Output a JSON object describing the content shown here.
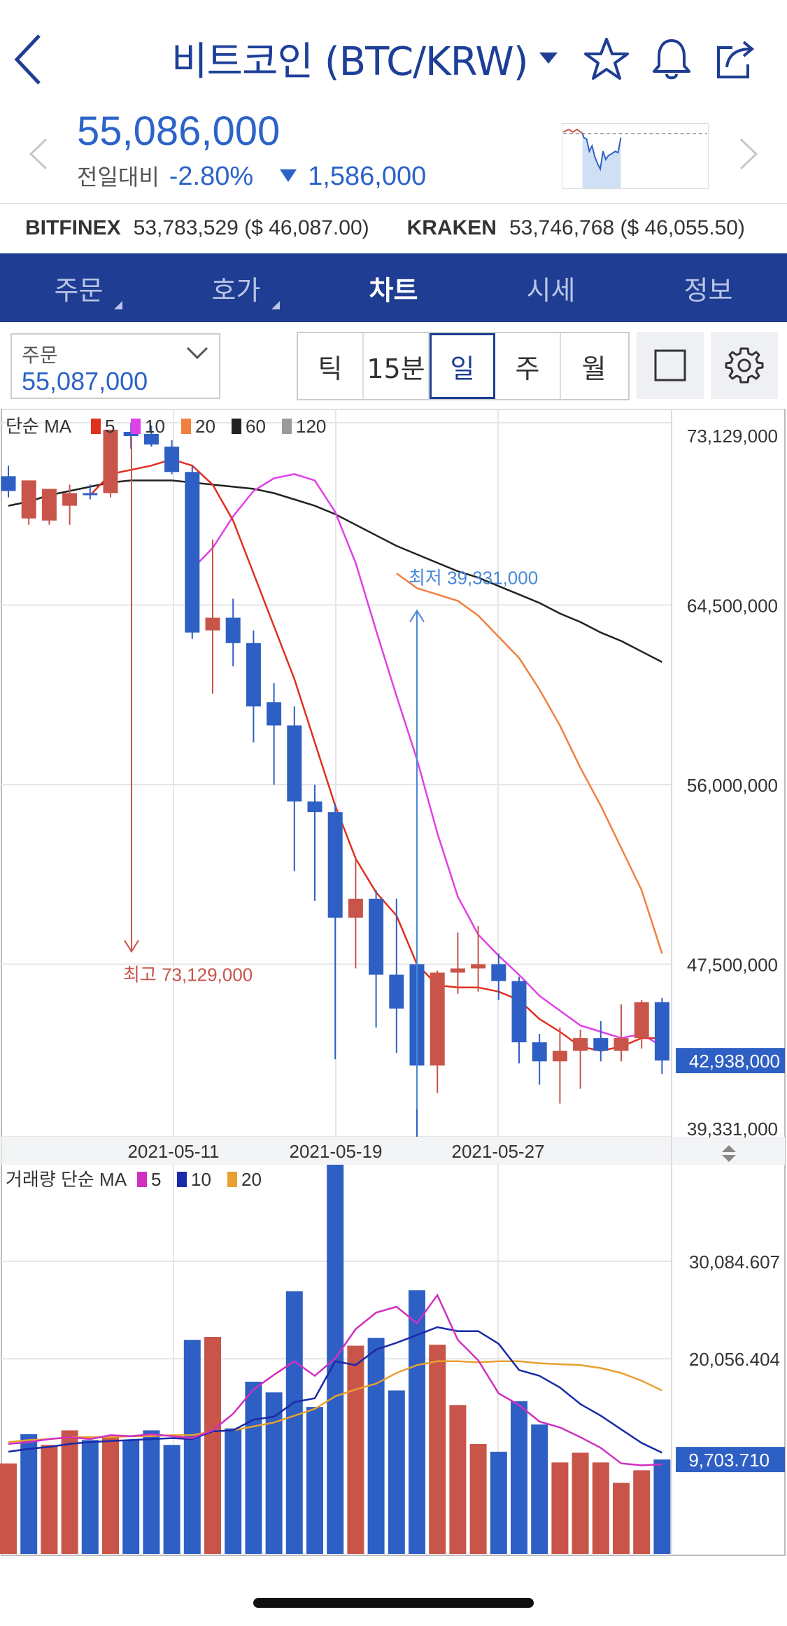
{
  "header": {
    "title": "비트코인 (BTC/KRW)",
    "icons": [
      "back-icon",
      "caret-down-icon",
      "star-icon",
      "bell-icon",
      "share-icon"
    ]
  },
  "price": {
    "current": "55,086,000",
    "change_label": "전일대비",
    "change_pct": "-2.80%",
    "change_amount": "1,586,000"
  },
  "exchanges": [
    {
      "name": "BITFINEX",
      "value": "53,783,529 ($ 46,087.00)"
    },
    {
      "name": "KRAKEN",
      "value": "53,746,768 ($ 46,055.50)"
    }
  ],
  "tabs": [
    {
      "label": "주문",
      "active": false
    },
    {
      "label": "호가",
      "active": false
    },
    {
      "label": "차트",
      "active": true
    },
    {
      "label": "시세",
      "active": false
    },
    {
      "label": "정보",
      "active": false
    }
  ],
  "toolbar": {
    "order_label": "주문",
    "order_value": "55,087,000",
    "periods": [
      "틱",
      "15분",
      "일",
      "주",
      "월"
    ],
    "selected_period": "일"
  },
  "colors": {
    "up": "#c8544a",
    "down": "#2e5fc4",
    "ma5": "#e0301e",
    "ma10": "#e040e8",
    "ma20": "#f08040",
    "ma60": "#222222",
    "ma120": "#9a9a9a",
    "vma5": "#d030c0",
    "vma10": "#1a2aa8",
    "vma20": "#e8a030"
  },
  "chart_data": [
    {
      "type": "candlestick",
      "legend_title": "단순 MA",
      "legend": [
        "5",
        "10",
        "20",
        "60",
        "120"
      ],
      "y_ticks": [
        "73,129,000",
        "64,500,000",
        "56,000,000",
        "47,500,000",
        "39,331,000"
      ],
      "y_tick_values": [
        73129000,
        64500000,
        56000000,
        47500000,
        39331000
      ],
      "ylim": [
        39331000,
        73129000
      ],
      "x_ticks": [
        "2021-05-11",
        "2021-05-19",
        "2021-05-27"
      ],
      "current_price_label": "42,938,000",
      "current_price": 42938000,
      "annotations": {
        "high": {
          "text": "최고 73,129,000",
          "value": 73129000
        },
        "low": {
          "text": "최저 39,331,000",
          "value": 39331000
        }
      },
      "candles": [
        {
          "o": 70600000,
          "h": 71100000,
          "l": 69600000,
          "c": 69900000
        },
        {
          "o": 68600000,
          "h": 70400000,
          "l": 68300000,
          "c": 70400000
        },
        {
          "o": 68500000,
          "h": 70000000,
          "l": 68300000,
          "c": 70000000
        },
        {
          "o": 69200000,
          "h": 70200000,
          "l": 68300000,
          "c": 69800000
        },
        {
          "o": 69800000,
          "h": 70200000,
          "l": 69500000,
          "c": 69700000
        },
        {
          "o": 69800000,
          "h": 72800000,
          "l": 69600000,
          "c": 72800000
        },
        {
          "o": 72700000,
          "h": 73129000,
          "l": 71900000,
          "c": 72500000
        },
        {
          "o": 72600000,
          "h": 73000000,
          "l": 72000000,
          "c": 72100000
        },
        {
          "o": 72000000,
          "h": 72300000,
          "l": 70700000,
          "c": 70800000
        },
        {
          "o": 70800000,
          "h": 71100000,
          "l": 62900000,
          "c": 63200000
        },
        {
          "o": 63300000,
          "h": 67600000,
          "l": 60300000,
          "c": 63900000
        },
        {
          "o": 63900000,
          "h": 64800000,
          "l": 61600000,
          "c": 62700000
        },
        {
          "o": 62700000,
          "h": 63300000,
          "l": 58000000,
          "c": 59700000
        },
        {
          "o": 59900000,
          "h": 60800000,
          "l": 56000000,
          "c": 58800000
        },
        {
          "o": 58800000,
          "h": 59700000,
          "l": 51900000,
          "c": 55200000
        },
        {
          "o": 55200000,
          "h": 56000000,
          "l": 50500000,
          "c": 54700000
        },
        {
          "o": 54700000,
          "h": 55100000,
          "l": 43000000,
          "c": 49700000
        },
        {
          "o": 49700000,
          "h": 52600000,
          "l": 47300000,
          "c": 50600000
        },
        {
          "o": 50600000,
          "h": 51000000,
          "l": 44500000,
          "c": 47000000
        },
        {
          "o": 47000000,
          "h": 50600000,
          "l": 43300000,
          "c": 45400000
        },
        {
          "o": 47500000,
          "h": 48300000,
          "l": 39331000,
          "c": 42700000
        },
        {
          "o": 42700000,
          "h": 47200000,
          "l": 41400000,
          "c": 47100000
        },
        {
          "o": 47100000,
          "h": 49000000,
          "l": 46100000,
          "c": 47300000
        },
        {
          "o": 47300000,
          "h": 49300000,
          "l": 46200000,
          "c": 47500000
        },
        {
          "o": 47500000,
          "h": 48000000,
          "l": 45800000,
          "c": 46700000
        },
        {
          "o": 46700000,
          "h": 46900000,
          "l": 42800000,
          "c": 43800000
        },
        {
          "o": 43800000,
          "h": 44200000,
          "l": 41800000,
          "c": 42900000
        },
        {
          "o": 42900000,
          "h": 44500000,
          "l": 40900000,
          "c": 43400000
        },
        {
          "o": 43400000,
          "h": 44400000,
          "l": 41600000,
          "c": 44000000
        },
        {
          "o": 44000000,
          "h": 44800000,
          "l": 42900000,
          "c": 43400000
        },
        {
          "o": 43400000,
          "h": 45600000,
          "l": 42900000,
          "c": 44000000
        },
        {
          "o": 44000000,
          "h": 45800000,
          "l": 43500000,
          "c": 45700000
        },
        {
          "o": 45700000,
          "h": 45900000,
          "l": 42300000,
          "c": 42938000
        }
      ],
      "ma5": [
        null,
        null,
        null,
        null,
        69700000,
        70700000,
        70900000,
        71100000,
        71400000,
        71100000,
        70200000,
        68500000,
        66000000,
        63500000,
        61000000,
        58000000,
        55000000,
        52500000,
        50900000,
        49800000,
        47500000,
        46500000,
        46400000,
        46400000,
        46200000,
        45800000,
        44900000,
        44300000,
        43600000,
        43400000,
        43600000,
        44000000,
        44000000
      ],
      "ma10": [
        null,
        null,
        null,
        null,
        null,
        null,
        null,
        null,
        null,
        66200000,
        67200000,
        68700000,
        69900000,
        70500000,
        70700000,
        70400000,
        68900000,
        66500000,
        63300000,
        60200000,
        57200000,
        53700000,
        50700000,
        48900000,
        47900000,
        47000000,
        46000000,
        45300000,
        44600000,
        44300000,
        44000000,
        44200000,
        43600000
      ],
      "ma20": [
        null,
        null,
        null,
        null,
        null,
        null,
        null,
        null,
        null,
        null,
        null,
        null,
        null,
        null,
        null,
        null,
        null,
        null,
        null,
        66000000,
        65300000,
        65000000,
        64700000,
        64000000,
        63000000,
        62000000,
        60500000,
        58800000,
        56800000,
        55000000,
        53000000,
        51000000,
        48000000
      ],
      "ma60": [
        69200000,
        69400000,
        69700000,
        69900000,
        70100000,
        70300000,
        70400000,
        70400000,
        70400000,
        70300000,
        70200000,
        70100000,
        70000000,
        69800000,
        69500000,
        69200000,
        68800000,
        68300000,
        67800000,
        67300000,
        66900000,
        66500000,
        66100000,
        65800000,
        65400000,
        65000000,
        64600000,
        64100000,
        63700000,
        63200000,
        62800000,
        62300000,
        61800000
      ]
    },
    {
      "type": "bar",
      "legend_title": "거래량 단순 MA",
      "legend": [
        "5",
        "10",
        "20"
      ],
      "y_ticks": [
        "30,084.607",
        "20,056.404"
      ],
      "y_tick_values": [
        30084.607,
        20056.404
      ],
      "ylim": [
        0,
        40000
      ],
      "current_value_label": "9,703.710",
      "volumes": [
        9300,
        12300,
        11200,
        12700,
        11700,
        12000,
        11700,
        12700,
        11200,
        22000,
        22300,
        12900,
        17700,
        16600,
        27000,
        15100,
        40000,
        21400,
        22200,
        16800,
        27100,
        21500,
        15300,
        11300,
        10500,
        15700,
        13300,
        9400,
        10400,
        9400,
        7300,
        8600,
        9703.71
      ],
      "up": [
        true,
        false,
        true,
        true,
        false,
        true,
        false,
        false,
        false,
        false,
        true,
        false,
        false,
        false,
        false,
        false,
        false,
        true,
        false,
        false,
        false,
        true,
        true,
        true,
        false,
        false,
        false,
        true,
        true,
        true,
        true,
        true,
        false
      ],
      "vma5": [
        11300,
        11500,
        11800,
        12000,
        11800,
        12200,
        12100,
        12300,
        12100,
        11900,
        12700,
        14400,
        16900,
        18400,
        19800,
        18300,
        20100,
        23100,
        24800,
        25400,
        23700,
        26600,
        22000,
        19900,
        16500,
        15300,
        13600,
        13000,
        12000,
        10900,
        9300,
        9100,
        9200
      ],
      "vma10": [
        10500,
        10800,
        11000,
        11300,
        11500,
        11600,
        11700,
        11800,
        11900,
        11800,
        12600,
        12700,
        13800,
        14100,
        15600,
        16000,
        19800,
        19400,
        21000,
        21700,
        22500,
        23300,
        22900,
        22900,
        21600,
        18900,
        18300,
        17100,
        15400,
        14200,
        12800,
        11400,
        10400
      ],
      "vma20": [
        11500,
        11700,
        11800,
        12000,
        12000,
        12000,
        12100,
        12100,
        12200,
        12200,
        12600,
        12700,
        13100,
        13500,
        14200,
        14900,
        16200,
        16900,
        17500,
        18600,
        19400,
        19800,
        19800,
        19700,
        19800,
        19800,
        19600,
        19500,
        19400,
        19100,
        18600,
        17800,
        16800
      ]
    }
  ]
}
